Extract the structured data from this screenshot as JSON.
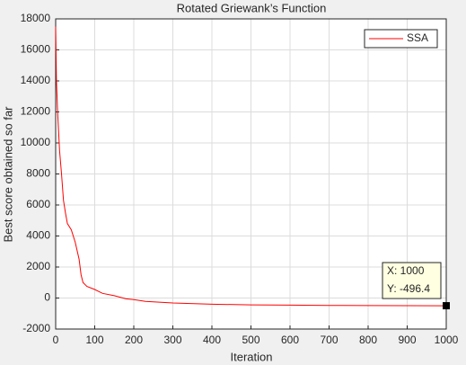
{
  "chart_data": {
    "type": "line",
    "title": "Rotated Griewank’s Function",
    "xlabel": "Iteration",
    "ylabel": "Best score obtained so far",
    "x": [
      0,
      2,
      5,
      10,
      15,
      20,
      25,
      30,
      40,
      50,
      60,
      65,
      70,
      80,
      100,
      120,
      150,
      180,
      200,
      230,
      300,
      400,
      500,
      600,
      700,
      800,
      900,
      1000
    ],
    "series": [
      {
        "name": "SSA",
        "color": "#ff0000",
        "values": [
          17500,
          14000,
          12000,
          9500,
          8000,
          6300,
          5500,
          4800,
          4400,
          3600,
          2500,
          1500,
          1000,
          750,
          550,
          300,
          150,
          -50,
          -100,
          -220,
          -320,
          -400,
          -440,
          -460,
          -475,
          -485,
          -492,
          -496.4
        ]
      }
    ],
    "xlim": [
      0,
      1000
    ],
    "xticks": [
      0,
      100,
      200,
      300,
      400,
      500,
      600,
      700,
      800,
      900,
      1000
    ],
    "ylim": [
      -2000,
      18000
    ],
    "yticks": [
      -2000,
      0,
      2000,
      4000,
      6000,
      8000,
      10000,
      12000,
      14000,
      16000,
      18000
    ],
    "grid": true,
    "legend": "top-right",
    "datatip": {
      "lines": [
        "X: 1000",
        "Y: -496.4"
      ]
    }
  }
}
